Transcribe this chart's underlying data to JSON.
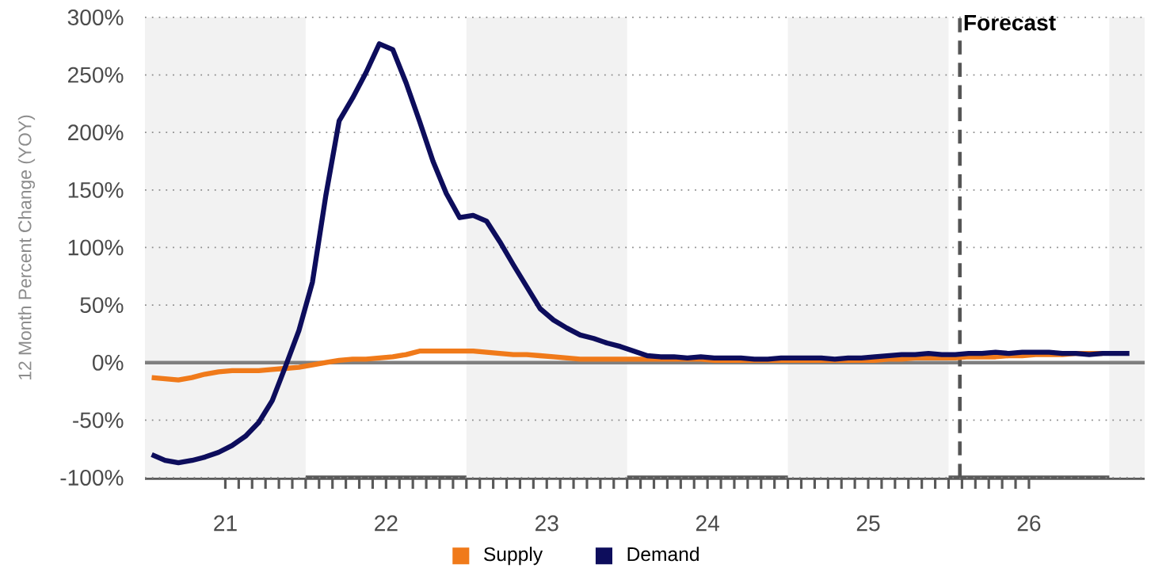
{
  "chart_data": {
    "type": "line",
    "ylabel": "12 Month Percent Change (YOY)",
    "x": [
      21.042,
      21.125,
      21.208,
      21.292,
      21.375,
      21.458,
      21.542,
      21.625,
      21.708,
      21.792,
      21.875,
      21.958,
      22.042,
      22.125,
      22.208,
      22.292,
      22.375,
      22.458,
      22.542,
      22.625,
      22.708,
      22.792,
      22.875,
      22.958,
      23.042,
      23.125,
      23.208,
      23.292,
      23.375,
      23.458,
      23.542,
      23.625,
      23.708,
      23.792,
      23.875,
      23.958,
      24.042,
      24.125,
      24.208,
      24.292,
      24.375,
      24.458,
      24.542,
      24.625,
      24.708,
      24.792,
      24.875,
      24.958,
      25.042,
      25.125,
      25.208,
      25.292,
      25.375,
      25.458,
      25.542,
      25.625,
      25.708,
      25.792,
      25.875,
      25.958,
      26.042,
      26.125,
      26.208,
      26.292,
      26.375,
      26.458,
      26.542,
      26.625,
      26.708,
      26.792,
      26.875,
      26.958,
      27.042,
      27.125
    ],
    "series": [
      {
        "name": "Supply",
        "color": "#f07a1a",
        "values": [
          -13,
          -14,
          -15,
          -13,
          -10,
          -8,
          -7,
          -7,
          -7,
          -6,
          -5,
          -4,
          -2,
          0,
          2,
          3,
          3,
          4,
          5,
          7,
          10,
          10,
          10,
          10,
          10,
          9,
          8,
          7,
          7,
          6,
          5,
          4,
          3,
          3,
          3,
          3,
          3,
          3,
          3,
          3,
          3,
          3,
          2,
          2,
          2,
          2,
          2,
          2,
          2,
          2,
          2,
          2,
          2,
          2,
          2,
          3,
          3,
          4,
          4,
          4,
          4,
          5,
          5,
          5,
          6,
          6,
          7,
          7,
          7,
          8,
          8,
          8,
          null,
          null
        ]
      },
      {
        "name": "Demand",
        "color": "#0d0d5c",
        "values": [
          -80,
          -85,
          -87,
          -85,
          -82,
          -78,
          -72,
          -64,
          -52,
          -33,
          -3,
          28,
          70,
          145,
          210,
          230,
          252,
          277,
          272,
          243,
          210,
          175,
          147,
          126,
          128,
          123,
          105,
          85,
          66,
          47,
          37,
          30,
          24,
          21,
          17,
          14,
          10,
          6,
          5,
          5,
          4,
          5,
          4,
          4,
          4,
          3,
          3,
          4,
          4,
          4,
          4,
          3,
          4,
          4,
          5,
          6,
          7,
          7,
          8,
          7,
          7,
          8,
          8,
          9,
          8,
          9,
          9,
          9,
          8,
          8,
          7,
          8,
          8,
          8
        ]
      }
    ],
    "xlim": [
      21,
      27.22
    ],
    "xticks": [
      {
        "value": 21.5,
        "label": "21"
      },
      {
        "value": 22.5,
        "label": "22"
      },
      {
        "value": 23.5,
        "label": "23"
      },
      {
        "value": 24.5,
        "label": "24"
      },
      {
        "value": 25.5,
        "label": "25"
      },
      {
        "value": 26.5,
        "label": "26"
      }
    ],
    "ylim": [
      -100,
      300
    ],
    "yticks": [
      {
        "value": -100,
        "label": "-100%"
      },
      {
        "value": -50,
        "label": "-50%"
      },
      {
        "value": 0,
        "label": "0%"
      },
      {
        "value": 50,
        "label": "50%"
      },
      {
        "value": 100,
        "label": "100%"
      },
      {
        "value": 150,
        "label": "150%"
      },
      {
        "value": 200,
        "label": "200%"
      },
      {
        "value": 250,
        "label": "250%"
      },
      {
        "value": 300,
        "label": "300%"
      }
    ],
    "bands": [
      {
        "axis": "x",
        "from": 21,
        "to": 22,
        "color": "#f2f2f2"
      },
      {
        "axis": "x",
        "from": 23,
        "to": 24,
        "color": "#f2f2f2"
      },
      {
        "axis": "x",
        "from": 25,
        "to": 26,
        "color": "#f2f2f2"
      },
      {
        "axis": "x",
        "from": 27,
        "to": 27.22,
        "color": "#f2f2f2"
      }
    ],
    "ref_lines": [
      {
        "axis": "y",
        "value": 0,
        "color": "#7f7f7f",
        "line_style": "solid"
      },
      {
        "axis": "x",
        "value": 26.07,
        "label": "Forecast",
        "color": "#555555",
        "line_style": "dashed"
      }
    ],
    "grid": "y",
    "legend": "bottom",
    "marker": "none",
    "line_style": "solid"
  }
}
